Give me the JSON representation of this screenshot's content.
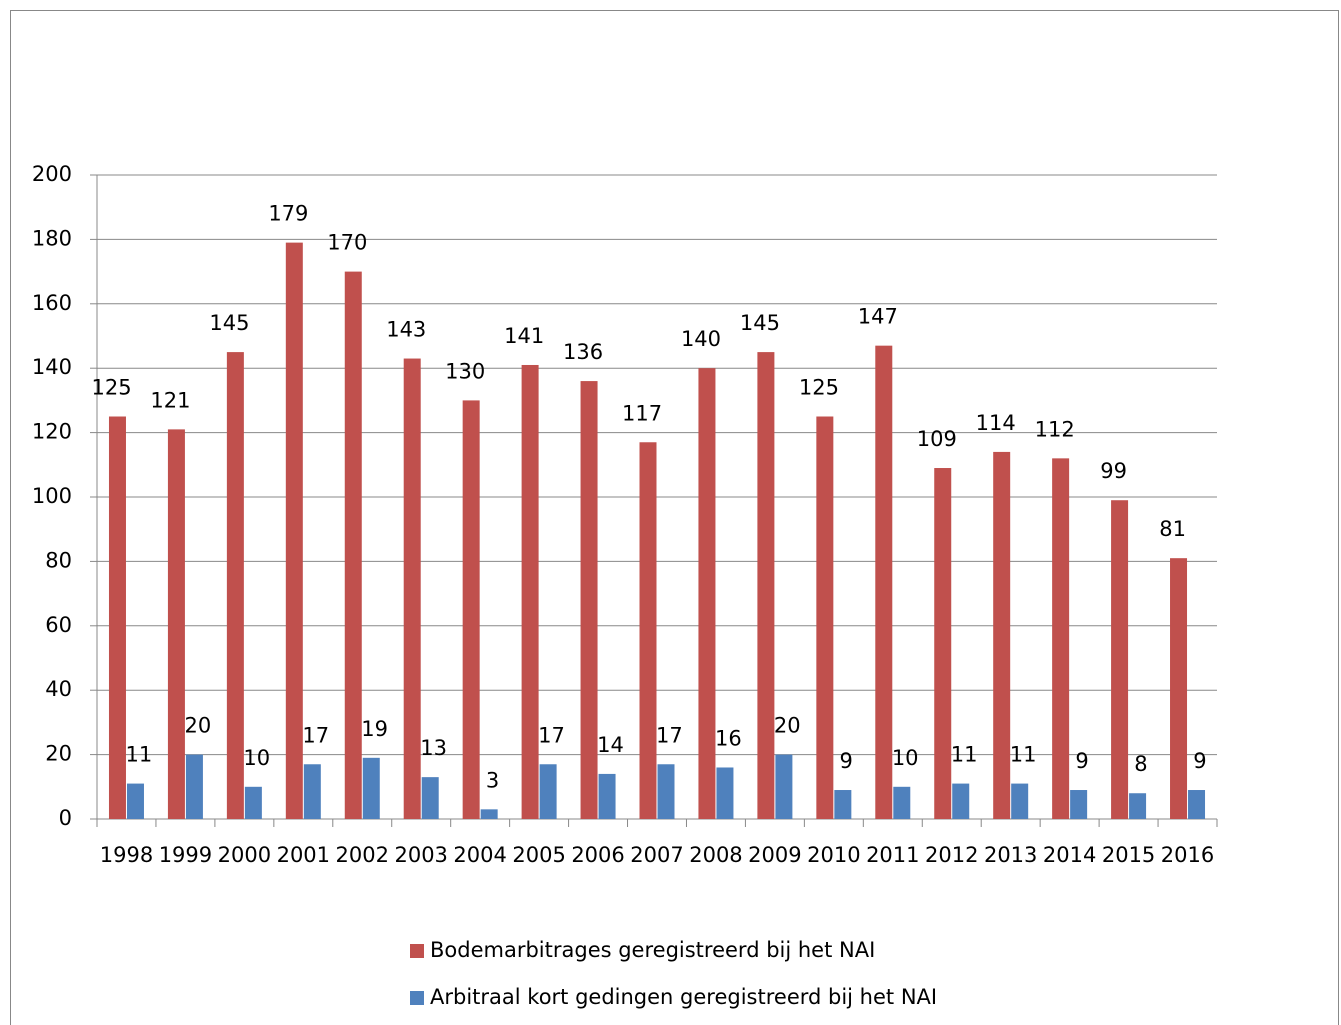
{
  "chart_data": {
    "type": "bar",
    "categories": [
      "1998",
      "1999",
      "2000",
      "2001",
      "2002",
      "2003",
      "2004",
      "2005",
      "2006",
      "2007",
      "2008",
      "2009",
      "2010",
      "2011",
      "2012",
      "2013",
      "2014",
      "2015",
      "2016"
    ],
    "series": [
      {
        "name": "Bodemarbitrages geregistreerd bij het NAI",
        "color": "#c0504d",
        "values": [
          125,
          121,
          145,
          179,
          170,
          143,
          130,
          141,
          136,
          117,
          140,
          145,
          125,
          147,
          109,
          114,
          112,
          99,
          81
        ]
      },
      {
        "name": "Arbitraal kort gedingen geregistreerd bij het NAI",
        "color": "#4f81bd",
        "values": [
          11,
          20,
          10,
          17,
          19,
          13,
          3,
          17,
          14,
          17,
          16,
          20,
          9,
          10,
          11,
          11,
          9,
          8,
          9
        ]
      }
    ],
    "ylim": [
      0,
      200
    ],
    "yticks": [
      0,
      20,
      40,
      60,
      80,
      100,
      120,
      140,
      160,
      180,
      200
    ],
    "grid": true,
    "legend": "bottom",
    "data_labels": true
  }
}
